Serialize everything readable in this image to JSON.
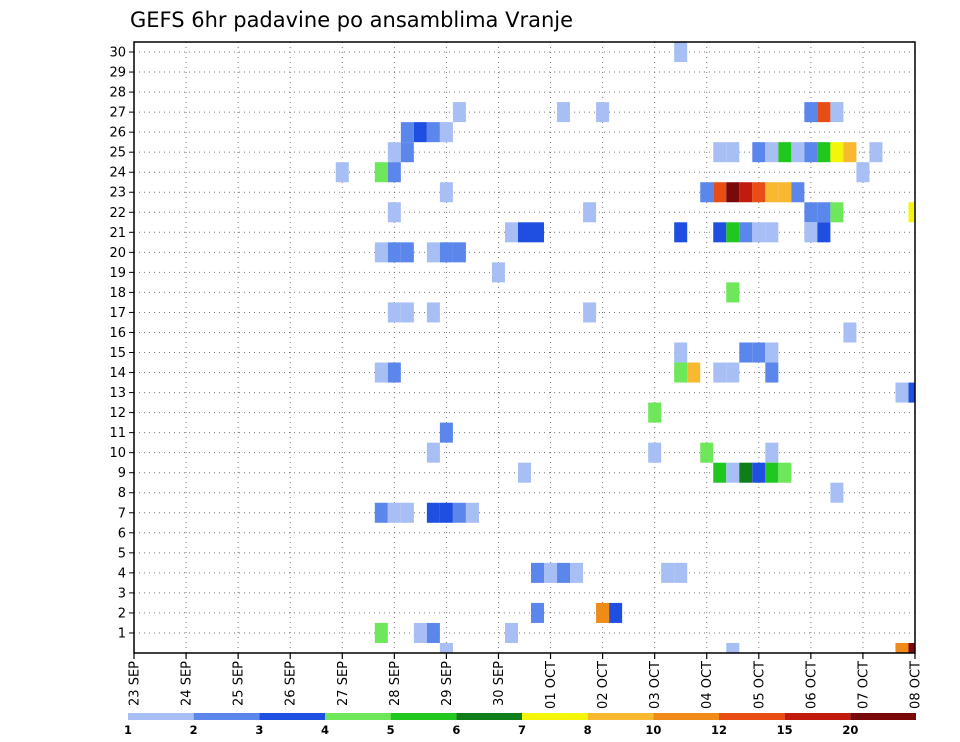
{
  "chart_data": {
    "type": "heatmap",
    "title": "GEFS 6hr padavine po ansamblima Vranje",
    "xlabel": "",
    "ylabel": "",
    "x_tick_labels": [
      "23 SEP",
      "24 SEP",
      "25 SEP",
      "26 SEP",
      "27 SEP",
      "28 SEP",
      "29 SEP",
      "30 SEP",
      "01 OCT",
      "02 OCT",
      "03 OCT",
      "04 OCT",
      "05 OCT",
      "06 OCT",
      "07 OCT",
      "08 OCT"
    ],
    "x_unit": "6-hour step from 23 SEP",
    "xlim": [
      0,
      60
    ],
    "y_tick_labels": [
      "1",
      "2",
      "3",
      "4",
      "5",
      "6",
      "7",
      "8",
      "9",
      "10",
      "11",
      "12",
      "13",
      "14",
      "15",
      "16",
      "17",
      "18",
      "19",
      "20",
      "21",
      "22",
      "23",
      "24",
      "25",
      "26",
      "27",
      "28",
      "29",
      "30"
    ],
    "ylim": [
      0,
      30
    ],
    "grid": true,
    "legend": {
      "placement": "bottom",
      "levels": [
        "1",
        "2",
        "3",
        "4",
        "5",
        "6",
        "7",
        "8",
        "10",
        "12",
        "15",
        "20"
      ],
      "colors": [
        "#a8bff5",
        "#5b86ec",
        "#1f4fe0",
        "#6ee85a",
        "#1fc71f",
        "#0f7d1a",
        "#f5f50a",
        "#f8b830",
        "#f08a18",
        "#e84d14",
        "#c21a0c",
        "#7a0a0a"
      ]
    },
    "cells": [
      [
        42,
        30,
        1
      ],
      [
        25,
        27,
        1
      ],
      [
        33,
        27,
        1
      ],
      [
        36,
        27,
        1
      ],
      [
        52,
        27,
        2
      ],
      [
        53,
        27,
        10
      ],
      [
        54,
        27,
        1
      ],
      [
        21,
        26,
        2
      ],
      [
        22,
        26,
        3
      ],
      [
        23,
        26,
        2
      ],
      [
        24,
        26,
        1
      ],
      [
        20,
        25,
        1
      ],
      [
        21,
        25,
        2
      ],
      [
        45,
        25,
        1
      ],
      [
        46,
        25,
        1
      ],
      [
        48,
        25,
        2
      ],
      [
        49,
        25,
        1
      ],
      [
        50,
        25,
        5
      ],
      [
        51,
        25,
        1
      ],
      [
        52,
        25,
        2
      ],
      [
        53,
        25,
        5
      ],
      [
        54,
        25,
        7
      ],
      [
        55,
        25,
        8
      ],
      [
        57,
        25,
        1
      ],
      [
        16,
        24,
        1
      ],
      [
        19,
        24,
        4
      ],
      [
        20,
        24,
        2
      ],
      [
        56,
        24,
        1
      ],
      [
        24,
        23,
        1
      ],
      [
        44,
        23,
        2
      ],
      [
        45,
        23,
        10
      ],
      [
        46,
        23,
        12
      ],
      [
        47,
        23,
        11
      ],
      [
        48,
        23,
        10
      ],
      [
        49,
        23,
        8
      ],
      [
        50,
        23,
        8
      ],
      [
        51,
        23,
        2
      ],
      [
        20,
        22,
        1
      ],
      [
        35,
        22,
        1
      ],
      [
        52,
        22,
        2
      ],
      [
        53,
        22,
        2
      ],
      [
        54,
        22,
        4
      ],
      [
        60,
        22,
        7
      ],
      [
        29,
        21,
        1
      ],
      [
        30,
        21,
        3
      ],
      [
        31,
        21,
        3
      ],
      [
        42,
        21,
        3
      ],
      [
        45,
        21,
        3
      ],
      [
        46,
        21,
        5
      ],
      [
        47,
        21,
        2
      ],
      [
        48,
        21,
        1
      ],
      [
        49,
        21,
        1
      ],
      [
        52,
        21,
        1
      ],
      [
        53,
        21,
        3
      ],
      [
        19,
        20,
        1
      ],
      [
        20,
        20,
        2
      ],
      [
        21,
        20,
        2
      ],
      [
        23,
        20,
        1
      ],
      [
        24,
        20,
        2
      ],
      [
        25,
        20,
        2
      ],
      [
        28,
        19,
        1
      ],
      [
        46,
        18,
        4
      ],
      [
        20,
        17,
        1
      ],
      [
        21,
        17,
        1
      ],
      [
        23,
        17,
        1
      ],
      [
        35,
        17,
        1
      ],
      [
        55,
        16,
        1
      ],
      [
        42,
        15,
        1
      ],
      [
        47,
        15,
        2
      ],
      [
        48,
        15,
        2
      ],
      [
        49,
        15,
        1
      ],
      [
        19,
        14,
        1
      ],
      [
        20,
        14,
        2
      ],
      [
        42,
        14,
        4
      ],
      [
        43,
        14,
        8
      ],
      [
        45,
        14,
        1
      ],
      [
        46,
        14,
        1
      ],
      [
        49,
        14,
        2
      ],
      [
        59,
        13,
        1
      ],
      [
        60,
        13,
        3
      ],
      [
        40,
        12,
        4
      ],
      [
        24,
        11,
        2
      ],
      [
        23,
        10,
        1
      ],
      [
        40,
        10,
        1
      ],
      [
        44,
        10,
        4
      ],
      [
        49,
        10,
        1
      ],
      [
        30,
        9,
        1
      ],
      [
        45,
        9,
        5
      ],
      [
        46,
        9,
        1
      ],
      [
        47,
        9,
        6
      ],
      [
        48,
        9,
        3
      ],
      [
        49,
        9,
        5
      ],
      [
        50,
        9,
        4
      ],
      [
        54,
        8,
        1
      ],
      [
        19,
        7,
        2
      ],
      [
        20,
        7,
        1
      ],
      [
        21,
        7,
        1
      ],
      [
        23,
        7,
        3
      ],
      [
        24,
        7,
        3
      ],
      [
        25,
        7,
        2
      ],
      [
        26,
        7,
        1
      ],
      [
        31,
        4,
        2
      ],
      [
        32,
        4,
        1
      ],
      [
        33,
        4,
        2
      ],
      [
        34,
        4,
        1
      ],
      [
        41,
        4,
        1
      ],
      [
        42,
        4,
        1
      ],
      [
        31,
        2,
        2
      ],
      [
        36,
        2,
        9
      ],
      [
        37,
        2,
        3
      ],
      [
        19,
        1,
        4
      ],
      [
        22,
        1,
        1
      ],
      [
        23,
        1,
        2
      ],
      [
        29,
        1,
        1
      ],
      [
        24,
        0,
        1
      ],
      [
        46,
        0,
        1
      ],
      [
        59,
        0,
        9
      ],
      [
        60,
        0,
        12
      ]
    ]
  }
}
